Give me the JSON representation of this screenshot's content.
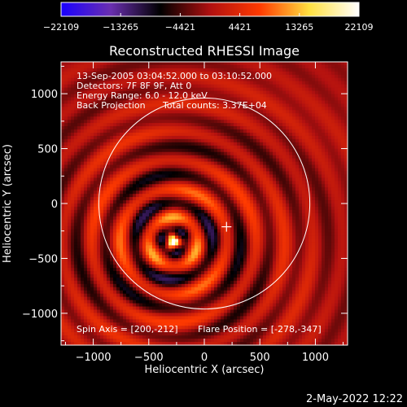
{
  "chart_data": {
    "type": "heatmap",
    "title": "Reconstructed RHESSI Image",
    "xlabel": "Heliocentric X (arcsec)",
    "ylabel": "Heliocentric Y (arcsec)",
    "xlim": [
      -1290,
      1290
    ],
    "ylim": [
      -1290,
      1290
    ],
    "x_ticks": [
      -1000,
      -500,
      0,
      500,
      1000
    ],
    "y_ticks": [
      -1000,
      -500,
      0,
      500,
      1000
    ],
    "x_tick_labels": [
      "−1000",
      "−500",
      "0",
      "500",
      "1000"
    ],
    "y_tick_labels": [
      "−1000",
      "−500",
      "0",
      "500",
      "1000"
    ],
    "colorbar": {
      "range": [
        -22109,
        22109
      ],
      "ticks": [
        -22109,
        -13265,
        -4421,
        4421,
        13265,
        22109
      ],
      "tick_labels": [
        "−22109",
        "−13265",
        "−4421",
        "4421",
        "13265",
        "22109"
      ],
      "colors": [
        "#1a00ff",
        "#6a2fb0",
        "#000000",
        "#b01010",
        "#ff3a00",
        "#ffe040",
        "#ffffff"
      ]
    },
    "solar_limb": {
      "center": [
        0,
        0
      ],
      "radius": 950
    },
    "source": {
      "x": -278,
      "y": -347,
      "peak": 22109
    },
    "spin_axis": [
      200,
      -212
    ],
    "annotations": [
      "13-Sep-2005 03:04:52.000 to 03:10:52.000",
      "Detectors: 7F 8F 9F, Att 0",
      "Energy Range: 6.0 - 12.0 keV",
      "Back Projection",
      "Total counts: 3.37E+04"
    ],
    "footer_annotations": [
      "Spin Axis = [200,-212]",
      "Flare Position = [-278,-347]"
    ]
  },
  "timestamp": "2-May-2022 12:22"
}
